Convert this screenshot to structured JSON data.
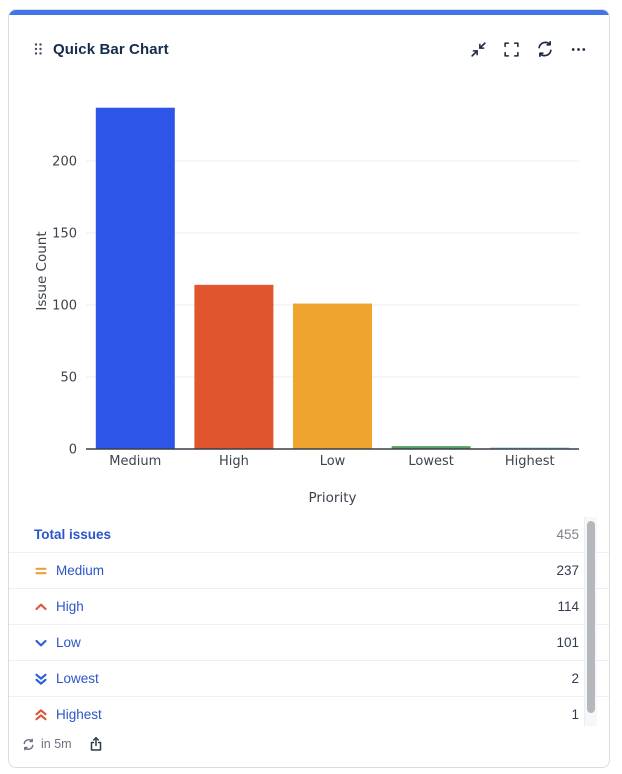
{
  "accent_color": "#4274EA",
  "header": {
    "title": "Quick Bar Chart",
    "actions": [
      {
        "name": "minimize",
        "icon": "minimize-icon"
      },
      {
        "name": "fullscreen",
        "icon": "fullscreen-icon"
      },
      {
        "name": "refresh",
        "icon": "refresh-icon"
      },
      {
        "name": "more-options",
        "icon": "more-options-icon"
      }
    ]
  },
  "chart_data": {
    "type": "bar",
    "title": "",
    "categories": [
      "Medium",
      "High",
      "Low",
      "Lowest",
      "Highest"
    ],
    "values": [
      237,
      114,
      101,
      2,
      1
    ],
    "bar_colors": [
      "#2E55E8",
      "#E0542E",
      "#EEA42D",
      "#55A169",
      "#7EC5DD"
    ],
    "xlabel": "Priority",
    "ylabel": "Issue Count",
    "ylim": [
      0,
      250
    ],
    "yticks": [
      0,
      50,
      100,
      150,
      200
    ],
    "grid": true,
    "legend": false,
    "grid_color": "#ececec",
    "axis_color": "#3a3f47",
    "tick_color": "#3d434e"
  },
  "table": {
    "total_row": {
      "label": "Total issues",
      "value": "455"
    },
    "rows": [
      {
        "label": "Medium",
        "value": "237",
        "icon": "priority-medium-icon",
        "icon_color": "#E8A23B"
      },
      {
        "label": "High",
        "value": "114",
        "icon": "priority-high-icon",
        "icon_color": "#D9593F"
      },
      {
        "label": "Low",
        "value": "101",
        "icon": "priority-low-icon",
        "icon_color": "#2F5FDE"
      },
      {
        "label": "Lowest",
        "value": "2",
        "icon": "priority-lowest-icon",
        "icon_color": "#2F5FDE"
      },
      {
        "label": "Highest",
        "value": "1",
        "icon": "priority-highest-icon",
        "icon_color": "#D9593F"
      }
    ]
  },
  "footer": {
    "refresh_text": "in 5m"
  },
  "colors": {
    "link": "#2C55C8",
    "title": "#172B4D",
    "value_muted": "#7D828E",
    "value_dark": "#333B4F"
  }
}
